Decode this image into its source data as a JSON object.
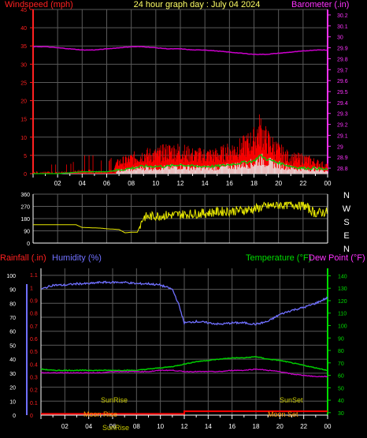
{
  "title": "24 hour graph day : July 04 2024",
  "colors": {
    "wind": "#ff2020",
    "gust_dark": "#ff0000",
    "avg_wind": "#00cc00",
    "baro": "#cc00cc",
    "wind_dir": "#e8e800",
    "humidity": "#7070ff",
    "temperature": "#00cc00",
    "dewpoint": "#cc00cc",
    "rain": "#ff0000",
    "grid": "#5a5a5a",
    "axis": "#ffffff",
    "sun_label": "#c8c800",
    "moon_label": "#ff9900"
  },
  "panel1": {
    "left_label": "Windspeed (mph)",
    "right_label": "Barometer (.in)",
    "left_ticks": [
      "0",
      "5",
      "10",
      "15",
      "20",
      "25",
      "30",
      "35",
      "40",
      "45"
    ],
    "right_ticks": [
      "28.8",
      "28.9",
      "29",
      "29.1",
      "29.2",
      "29.3",
      "29.4",
      "29.5",
      "29.6",
      "29.7",
      "29.8",
      "29.9",
      "30",
      "30.1",
      "30.2"
    ],
    "x_ticks": [
      "02",
      "04",
      "06",
      "08",
      "10",
      "12",
      "14",
      "16",
      "18",
      "20",
      "22",
      "00"
    ]
  },
  "panel2": {
    "left_ticks": [
      "0",
      "90",
      "180",
      "270",
      "360"
    ],
    "compass": [
      "N",
      "W",
      "S",
      "E",
      "N"
    ],
    "x_ticks": []
  },
  "panel3": {
    "rain_label": "Rainfall (.in)",
    "humidity_label": "Humidity (%)",
    "temp_label": "Temperature (°F)",
    "dew_label": "Dew Point (°F)",
    "rain_ticks": [
      "0",
      "0.1",
      "0.2",
      "0.3",
      "0.4",
      "0.5",
      "0.6",
      "0.7",
      "0.8",
      "0.9",
      "1",
      "1.1"
    ],
    "hum_ticks": [
      "0",
      "10",
      "20",
      "30",
      "40",
      "50",
      "60",
      "70",
      "80",
      "90",
      "100"
    ],
    "temp_ticks": [
      "30",
      "40",
      "50",
      "60",
      "70",
      "80",
      "90",
      "100",
      "110",
      "120",
      "130",
      "140"
    ],
    "x_ticks": [
      "02",
      "04",
      "06",
      "08",
      "10",
      "12",
      "14",
      "16",
      "18",
      "20",
      "22",
      "00"
    ],
    "sunrise": "SunRise",
    "sunset": "SunSet",
    "moonrise": "Moon Rise",
    "moonset": "Moon Set",
    "sunrise_bottom": "SunRise"
  },
  "chart_data": [
    {
      "type": "line",
      "title": "24 hour graph day : July 04 2024",
      "xlabel": "",
      "x_ticks": [
        "02",
        "04",
        "06",
        "08",
        "10",
        "12",
        "14",
        "16",
        "18",
        "20",
        "22",
        "00"
      ],
      "y_axes": [
        {
          "label": "Windspeed (mph)",
          "range": [
            0,
            45
          ]
        },
        {
          "label": "Barometer (.in)",
          "range": [
            28.75,
            30.25
          ]
        }
      ],
      "series": [
        {
          "name": "Windspeed (mph)",
          "axis": "left",
          "x": [
            0,
            1.5,
            2,
            3,
            4,
            5,
            6,
            7,
            8,
            9,
            10,
            11,
            12,
            13,
            14,
            15,
            16,
            17,
            18,
            18.5,
            19,
            20,
            21,
            22,
            23,
            24
          ],
          "values": [
            1,
            1,
            1,
            1,
            2,
            2,
            1,
            3,
            4,
            5,
            5,
            6,
            6,
            5,
            5,
            5,
            6,
            7,
            9,
            12,
            9,
            6,
            4,
            4,
            3,
            2
          ]
        },
        {
          "name": "Average wind",
          "axis": "left",
          "x": [
            0,
            2,
            4,
            6,
            7,
            8,
            9,
            10,
            11,
            12,
            13,
            14,
            15,
            16,
            17,
            18,
            18.5,
            19,
            20,
            21,
            22,
            23,
            24
          ],
          "values": [
            0,
            0,
            0.5,
            0.5,
            1,
            1.5,
            2,
            2,
            2,
            2.5,
            2,
            2,
            2,
            2.5,
            3,
            3.5,
            5,
            4,
            3,
            2,
            1.5,
            1.5,
            1
          ]
        },
        {
          "name": "Barometer (.in)",
          "axis": "right",
          "x": [
            0,
            1,
            2,
            3,
            4,
            5,
            6,
            7,
            8,
            9,
            10,
            11,
            12,
            13,
            14,
            15,
            16,
            17,
            18,
            19,
            20,
            21,
            22,
            23,
            24
          ],
          "values": [
            29.91,
            29.91,
            29.9,
            29.89,
            29.88,
            29.88,
            29.89,
            29.9,
            29.91,
            29.91,
            29.9,
            29.89,
            29.89,
            29.88,
            29.88,
            29.87,
            29.86,
            29.85,
            29.84,
            29.84,
            29.85,
            29.86,
            29.87,
            29.88,
            29.88
          ]
        }
      ]
    },
    {
      "type": "line",
      "title": "",
      "x_ticks": [],
      "y_axes": [
        {
          "label": "",
          "range": [
            0,
            360
          ]
        }
      ],
      "right_labels": [
        "N",
        "W",
        "S",
        "E",
        "N"
      ],
      "series": [
        {
          "name": "",
          "x": [
            0,
            2,
            3.5,
            4,
            5.5,
            6,
            7,
            7.5,
            8,
            8.5,
            9,
            10,
            11,
            12,
            13,
            14,
            15,
            16,
            17,
            18,
            19,
            20,
            21,
            22,
            22.5,
            23,
            24
          ],
          "values": [
            135,
            135,
            135,
            115,
            110,
            105,
            100,
            75,
            80,
            80,
            190,
            200,
            205,
            210,
            215,
            220,
            230,
            235,
            240,
            250,
            270,
            280,
            285,
            280,
            250,
            220,
            230
          ]
        }
      ]
    },
    {
      "type": "line",
      "title": "",
      "x_ticks": [
        "02",
        "04",
        "06",
        "08",
        "10",
        "12",
        "14",
        "16",
        "18",
        "20",
        "22",
        "00"
      ],
      "y_axes": [
        {
          "label": "Rainfall (.in)",
          "range": [
            0,
            1.15
          ]
        },
        {
          "label": "Humidity (%)",
          "range": [
            0,
            105
          ]
        },
        {
          "label": "Temperature (°F)",
          "range": [
            28,
            146
          ]
        }
      ],
      "series": [
        {
          "name": "Humidity (%)",
          "axis": "humidity",
          "x": [
            0,
            1,
            2,
            3,
            4,
            5,
            6,
            7,
            8,
            9,
            10,
            11,
            11.5,
            12,
            13,
            14,
            15,
            16,
            17,
            18,
            19,
            20,
            21,
            22,
            23,
            24
          ],
          "values": [
            90,
            93,
            93,
            94,
            94,
            95,
            95,
            95,
            94,
            94,
            93,
            90,
            80,
            66,
            67,
            66,
            65,
            66,
            66,
            65,
            67,
            72,
            75,
            77,
            80,
            84
          ]
        },
        {
          "name": "Temperature (°F)",
          "axis": "temperature",
          "x": [
            0,
            1,
            2,
            3,
            4,
            5,
            6,
            7,
            8,
            9,
            10,
            11,
            12,
            13,
            14,
            15,
            16,
            17,
            18,
            19,
            20,
            21,
            22,
            23,
            24
          ],
          "values": [
            65,
            64,
            64,
            64,
            64,
            64,
            64,
            64,
            64,
            65,
            66,
            67,
            69,
            71,
            72,
            73,
            74,
            74,
            75,
            73,
            72,
            70,
            68,
            66,
            64
          ]
        },
        {
          "name": "Dew Point (°F)",
          "axis": "temperature",
          "x": [
            0,
            1,
            2,
            3,
            4,
            5,
            6,
            7,
            8,
            9,
            10,
            11,
            12,
            13,
            14,
            15,
            16,
            17,
            18,
            19,
            20,
            21,
            22,
            23,
            24
          ],
          "values": [
            62,
            62,
            62,
            62,
            62,
            62,
            63,
            63,
            63,
            63,
            64,
            64,
            63,
            63,
            63,
            63,
            64,
            64,
            65,
            64,
            63,
            61,
            60,
            59,
            59
          ]
        },
        {
          "name": "Rainfall (.in)",
          "axis": "rain",
          "x": [
            0,
            12,
            12.1,
            24
          ],
          "values": [
            0.01,
            0.01,
            0.03,
            0.03
          ]
        }
      ],
      "annotations": [
        "SunRise",
        "SunSet",
        "Moon Rise",
        "Moon Set",
        "SunRise"
      ]
    }
  ]
}
